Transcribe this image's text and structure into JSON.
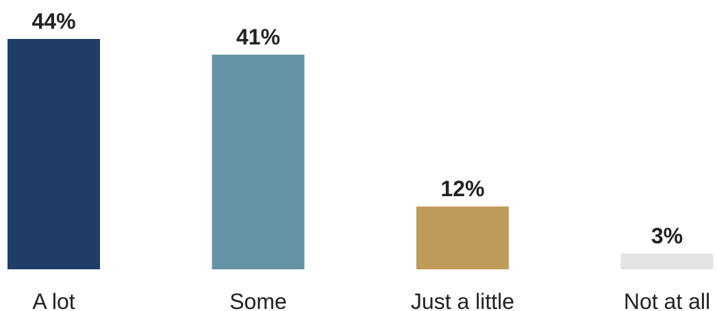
{
  "chart_data": {
    "type": "bar",
    "categories": [
      "A lot",
      "Some",
      "Just a little",
      "Not at all"
    ],
    "values": [
      44,
      41,
      12,
      3
    ],
    "value_labels": [
      "44%",
      "41%",
      "12%",
      "3%"
    ],
    "colors": [
      "#1f3d66",
      "#6493a5",
      "#bf9b5a",
      "#e3e3e3"
    ],
    "ylim": [
      0,
      44
    ],
    "grid": false,
    "legend": "none"
  }
}
